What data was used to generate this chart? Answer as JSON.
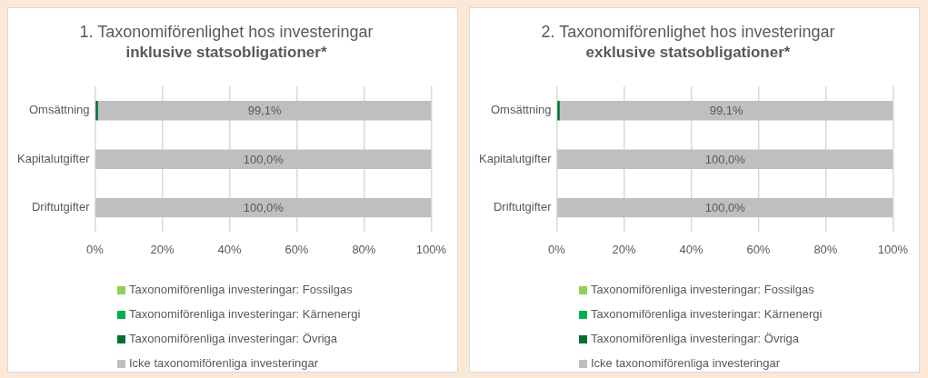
{
  "chart_data": [
    {
      "type": "bar",
      "orientation": "horizontal",
      "stacked": true,
      "title": "1. Taxonomiförenlighet hos investeringar",
      "subtitle": "inklusive statsobligationer*",
      "categories": [
        "Omsättning",
        "Kapitalutgifter",
        "Driftutgifter"
      ],
      "series": [
        {
          "name": "Taxonomiförenliga investeringar: Fossilgas",
          "color": "#92d050",
          "values": [
            0,
            0,
            0
          ]
        },
        {
          "name": "Taxonomiförenliga investeringar: Kärnenergi",
          "color": "#00b050",
          "values": [
            0,
            0,
            0
          ]
        },
        {
          "name": "Taxonomiförenliga investeringar: Övriga",
          "color": "#00712e",
          "values": [
            0.9,
            0,
            0
          ]
        },
        {
          "name": "Icke taxonomiförenliga investeringar",
          "color": "#bfbfbf",
          "values": [
            99.1,
            100,
            100
          ],
          "value_labels": [
            "99,1%",
            "100,0%",
            "100,0%"
          ]
        }
      ],
      "xlim": [
        0,
        100
      ],
      "xticks": [
        {
          "value": 0,
          "label": "0%"
        },
        {
          "value": 20,
          "label": "20%"
        },
        {
          "value": 40,
          "label": "40%"
        },
        {
          "value": 60,
          "label": "60%"
        },
        {
          "value": 80,
          "label": "80%"
        },
        {
          "value": 100,
          "label": "100%"
        }
      ],
      "grid": "x",
      "legend": "bottom"
    },
    {
      "type": "bar",
      "orientation": "horizontal",
      "stacked": true,
      "title": "2. Taxonomiförenlighet hos investeringar",
      "subtitle": "exklusive statsobligationer*",
      "categories": [
        "Omsättning",
        "Kapitalutgifter",
        "Driftutgifter"
      ],
      "series": [
        {
          "name": "Taxonomiförenliga investeringar: Fossilgas",
          "color": "#92d050",
          "values": [
            0,
            0,
            0
          ]
        },
        {
          "name": "Taxonomiförenliga investeringar: Kärnenergi",
          "color": "#00b050",
          "values": [
            0,
            0,
            0
          ]
        },
        {
          "name": "Taxonomiförenliga investeringar: Övriga",
          "color": "#00712e",
          "values": [
            0.9,
            0,
            0
          ]
        },
        {
          "name": "Icke taxonomiförenliga investeringar",
          "color": "#bfbfbf",
          "values": [
            99.1,
            100,
            100
          ],
          "value_labels": [
            "99,1%",
            "100,0%",
            "100,0%"
          ]
        }
      ],
      "xlim": [
        0,
        100
      ],
      "xticks": [
        {
          "value": 0,
          "label": "0%"
        },
        {
          "value": 20,
          "label": "20%"
        },
        {
          "value": 40,
          "label": "40%"
        },
        {
          "value": 60,
          "label": "60%"
        },
        {
          "value": 80,
          "label": "80%"
        },
        {
          "value": 100,
          "label": "100%"
        }
      ],
      "grid": "x",
      "legend": "bottom"
    }
  ]
}
